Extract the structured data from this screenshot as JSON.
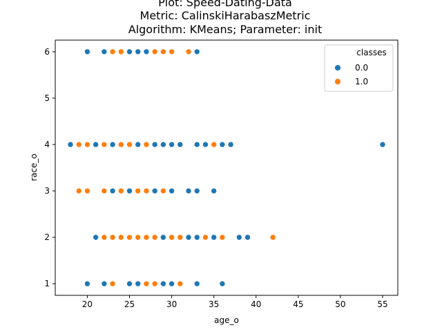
{
  "chart_data": {
    "type": "scatter",
    "title_lines": [
      "Plot: Speed-Dating-Data",
      "Metric: CalinskiHarabaszMetric",
      "Algorithm: KMeans; Parameter: init"
    ],
    "xlabel": "age_o",
    "ylabel": "race_o",
    "xlim": [
      16.2,
      56.8
    ],
    "ylim": [
      0.75,
      6.25
    ],
    "xticks": [
      20,
      25,
      30,
      35,
      40,
      45,
      50,
      55
    ],
    "yticks": [
      1,
      2,
      3,
      4,
      5,
      6
    ],
    "grid": false,
    "legend": {
      "title": "classes",
      "placement": "top-right"
    },
    "series": [
      {
        "name": "0.0",
        "color": "#1f77b4",
        "points": [
          [
            20,
            6
          ],
          [
            22,
            6
          ],
          [
            25,
            6
          ],
          [
            26,
            6
          ],
          [
            27,
            6
          ],
          [
            33,
            6
          ],
          [
            18,
            4
          ],
          [
            21,
            4
          ],
          [
            23,
            4
          ],
          [
            26,
            4
          ],
          [
            28,
            4
          ],
          [
            29,
            4
          ],
          [
            30,
            4
          ],
          [
            31,
            4
          ],
          [
            33,
            4
          ],
          [
            34,
            4
          ],
          [
            36,
            4
          ],
          [
            37,
            4
          ],
          [
            55,
            4
          ],
          [
            23,
            3
          ],
          [
            25,
            3
          ],
          [
            28,
            3
          ],
          [
            30,
            3
          ],
          [
            32,
            3
          ],
          [
            33,
            3
          ],
          [
            35,
            3
          ],
          [
            21,
            2
          ],
          [
            29,
            2
          ],
          [
            32,
            2
          ],
          [
            33,
            2
          ],
          [
            35,
            2
          ],
          [
            38,
            2
          ],
          [
            39,
            2
          ],
          [
            20,
            1
          ],
          [
            22,
            1
          ],
          [
            25,
            1
          ],
          [
            26,
            1
          ],
          [
            29,
            1
          ],
          [
            30,
            1
          ],
          [
            33,
            1
          ],
          [
            36,
            1
          ]
        ]
      },
      {
        "name": "1.0",
        "color": "#ff7f0e",
        "points": [
          [
            23,
            6
          ],
          [
            24,
            6
          ],
          [
            28,
            6
          ],
          [
            29,
            6
          ],
          [
            30,
            6
          ],
          [
            32,
            6
          ],
          [
            19,
            4
          ],
          [
            20,
            4
          ],
          [
            22,
            4
          ],
          [
            24,
            4
          ],
          [
            25,
            4
          ],
          [
            27,
            4
          ],
          [
            35,
            4
          ],
          [
            19,
            3
          ],
          [
            20,
            3
          ],
          [
            22,
            3
          ],
          [
            24,
            3
          ],
          [
            26,
            3
          ],
          [
            27,
            3
          ],
          [
            29,
            3
          ],
          [
            22,
            2
          ],
          [
            23,
            2
          ],
          [
            24,
            2
          ],
          [
            25,
            2
          ],
          [
            26,
            2
          ],
          [
            27,
            2
          ],
          [
            28,
            2
          ],
          [
            30,
            2
          ],
          [
            31,
            2
          ],
          [
            34,
            2
          ],
          [
            36,
            2
          ],
          [
            42,
            2
          ],
          [
            23,
            1
          ],
          [
            27,
            1
          ],
          [
            28,
            1
          ],
          [
            31,
            1
          ]
        ]
      }
    ]
  }
}
